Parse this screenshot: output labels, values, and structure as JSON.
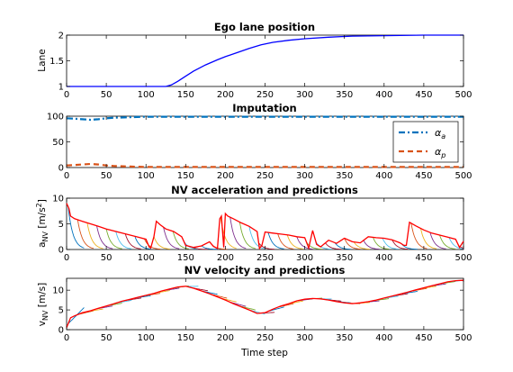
{
  "figure": {
    "shared_xlabel": "Time step"
  },
  "chart_data": [
    {
      "type": "line",
      "title": "Ego lane position",
      "xlabel": "",
      "ylabel": "Lane",
      "xlim": [
        0,
        500
      ],
      "ylim": [
        1,
        2
      ],
      "xticks": [
        0,
        50,
        100,
        150,
        200,
        250,
        300,
        350,
        400,
        450,
        500
      ],
      "yticks": [
        1,
        1.5,
        2
      ],
      "ytick_labels": [
        "1",
        "1.5",
        "2"
      ],
      "grid": false,
      "series": [
        {
          "color": "#0000ff",
          "style": "solid",
          "x": [
            0,
            125,
            132,
            140,
            150,
            160,
            175,
            190,
            200,
            215,
            230,
            245,
            260,
            280,
            300,
            330,
            360,
            400,
            450,
            500
          ],
          "y": [
            1.0,
            1.0,
            1.03,
            1.1,
            1.2,
            1.3,
            1.42,
            1.52,
            1.58,
            1.66,
            1.74,
            1.81,
            1.86,
            1.9,
            1.93,
            1.96,
            1.98,
            1.99,
            2.0,
            2.0
          ]
        }
      ]
    },
    {
      "type": "line",
      "title": "Imputation",
      "xlabel": "",
      "ylabel": "",
      "xlim": [
        0,
        500
      ],
      "ylim": [
        0,
        100
      ],
      "xticks": [
        0,
        50,
        100,
        150,
        200,
        250,
        300,
        350,
        400,
        450,
        500
      ],
      "yticks": [
        0,
        50,
        100
      ],
      "ytick_labels": [
        "0",
        "50",
        "100"
      ],
      "grid": false,
      "legend_position": "right",
      "series": [
        {
          "name": "α_a",
          "legend_main": "α",
          "legend_sub": "a",
          "color": "#0072bd",
          "style": "dashdot",
          "x": [
            0,
            10,
            20,
            30,
            40,
            50,
            60,
            80,
            100,
            150,
            200,
            300,
            400,
            500
          ],
          "y": [
            96,
            95,
            94,
            93,
            94,
            96,
            97,
            98,
            99,
            99,
            99,
            99,
            99,
            99
          ]
        },
        {
          "name": "α_p",
          "legend_main": "α",
          "legend_sub": "p",
          "color": "#d95319",
          "style": "dashed",
          "x": [
            0,
            10,
            20,
            30,
            40,
            50,
            60,
            80,
            100,
            150,
            200,
            300,
            400,
            500
          ],
          "y": [
            4,
            5,
            6,
            7,
            6,
            4,
            3,
            2,
            1,
            1,
            1,
            1,
            1,
            1
          ]
        }
      ]
    },
    {
      "type": "line",
      "title": "NV acceleration and predictions",
      "xlabel": "",
      "ylabel_main": "a",
      "ylabel_sub": "NV",
      "ylabel_unit": " [m/s",
      "ylabel_sup": "2",
      "ylabel_end": "]",
      "xlim": [
        0,
        500
      ],
      "ylim": [
        0,
        10
      ],
      "xticks": [
        0,
        50,
        100,
        150,
        200,
        250,
        300,
        350,
        400,
        450,
        500
      ],
      "yticks": [
        0,
        5,
        10
      ],
      "ytick_labels": [
        "0",
        "5",
        "10"
      ],
      "grid": false,
      "series": [
        {
          "name": "",
          "color": "#ff0000",
          "style": "solid",
          "x": [
            0,
            3,
            5,
            10,
            20,
            30,
            40,
            50,
            60,
            70,
            80,
            90,
            100,
            104,
            106,
            110,
            113,
            118,
            125,
            135,
            145,
            150,
            160,
            170,
            180,
            185,
            190,
            193,
            195,
            198,
            200,
            203,
            210,
            220,
            230,
            240,
            243,
            246,
            250,
            260,
            270,
            280,
            290,
            300,
            305,
            310,
            315,
            320,
            330,
            340,
            350,
            360,
            370,
            380,
            390,
            400,
            410,
            420,
            425,
            428,
            432,
            440,
            450,
            460,
            470,
            480,
            490,
            495,
            500
          ],
          "y": [
            9,
            8,
            6.5,
            6,
            5.5,
            5,
            4.5,
            4,
            3.6,
            3.2,
            2.8,
            2.4,
            2,
            0.5,
            0.3,
            2.5,
            5.5,
            4.8,
            4,
            3.5,
            2.5,
            0.8,
            0.4,
            0.7,
            1.5,
            0.6,
            0.2,
            6,
            6.5,
            0.4,
            7,
            6.5,
            6,
            5.2,
            4.5,
            3.5,
            0.2,
            0.8,
            3.4,
            3.2,
            3,
            2.8,
            2.5,
            2.3,
            0.3,
            3.7,
            1,
            0.5,
            1.8,
            1.2,
            2.2,
            1.5,
            1.3,
            2.5,
            2.3,
            2.2,
            1.9,
            1.3,
            0.8,
            0.8,
            5.3,
            4.6,
            3.8,
            3.2,
            2.8,
            2.4,
            2,
            0.4,
            1.6
          ]
        }
      ]
    },
    {
      "type": "line",
      "title": "NV velocity and predictions",
      "xlabel": "Time step",
      "ylabel_main": "v",
      "ylabel_sub": "NV",
      "ylabel_unit": " [m/s]",
      "xlim": [
        0,
        500
      ],
      "ylim": [
        0,
        13
      ],
      "xticks": [
        0,
        50,
        100,
        150,
        200,
        250,
        300,
        350,
        400,
        450,
        500
      ],
      "yticks": [
        0,
        5,
        10
      ],
      "ytick_labels": [
        "0",
        "5",
        "10"
      ],
      "grid": false,
      "series": [
        {
          "name": "",
          "color": "#ff0000",
          "style": "solid",
          "x": [
            0,
            5,
            10,
            20,
            30,
            40,
            50,
            60,
            70,
            80,
            90,
            100,
            110,
            120,
            130,
            140,
            150,
            160,
            170,
            180,
            190,
            200,
            210,
            220,
            230,
            240,
            250,
            260,
            270,
            280,
            290,
            300,
            310,
            320,
            330,
            340,
            350,
            360,
            370,
            380,
            390,
            400,
            410,
            420,
            430,
            440,
            450,
            460,
            470,
            480,
            490,
            500
          ],
          "y": [
            0.5,
            3,
            3.5,
            4.3,
            4.8,
            5.4,
            6,
            6.6,
            7.2,
            7.7,
            8.2,
            8.7,
            9.2,
            9.8,
            10.3,
            10.8,
            11,
            10.5,
            9.8,
            9.1,
            8.3,
            7.5,
            6.6,
            5.8,
            5,
            4.1,
            4.3,
            5.2,
            6,
            6.6,
            7.3,
            7.7,
            7.9,
            7.8,
            7.5,
            7.1,
            6.8,
            6.6,
            6.8,
            7.1,
            7.5,
            8,
            8.5,
            9,
            9.5,
            10.1,
            10.6,
            11.1,
            11.6,
            12.1,
            12.4,
            12.5
          ]
        }
      ]
    }
  ]
}
